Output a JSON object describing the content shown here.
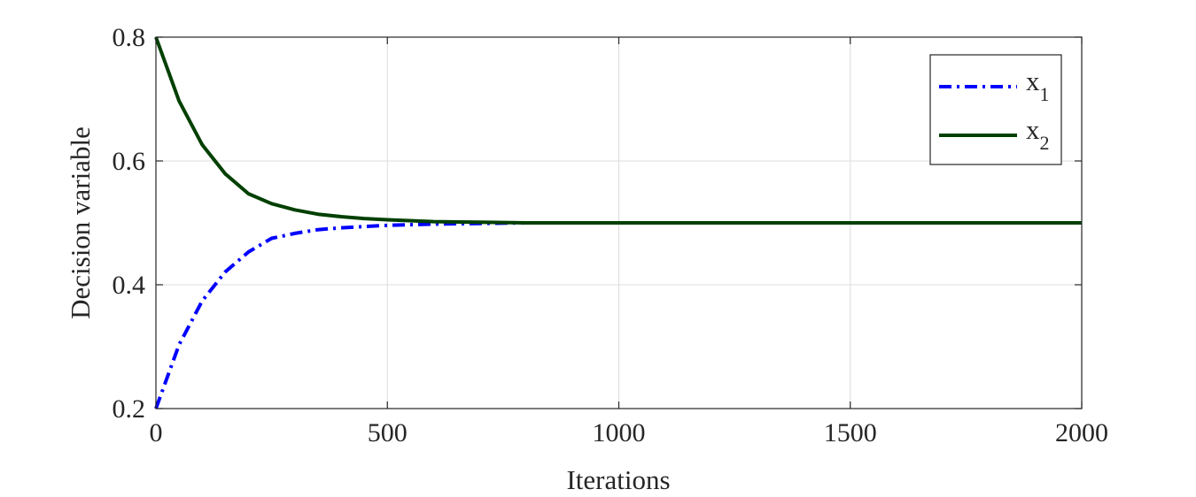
{
  "chart_data": {
    "type": "line",
    "xlabel": "Iterations",
    "ylabel": "Decision variable",
    "xlim": [
      0,
      2000
    ],
    "ylim": [
      0.2,
      0.8
    ],
    "xticks": [
      0,
      500,
      1000,
      1500,
      2000
    ],
    "xtick_labels": [
      "0",
      "500",
      "1000",
      "1500",
      "2000"
    ],
    "yticks": [
      0.2,
      0.4,
      0.6,
      0.8
    ],
    "ytick_labels": [
      "0.2",
      "0.4",
      "0.6",
      "0.8"
    ],
    "grid": true,
    "legend_position": "top-right",
    "series": [
      {
        "name": "x_1",
        "legend_base": "x",
        "legend_sub": "1",
        "color": "#0000ff",
        "style": "dash-dot",
        "x": [
          0,
          50,
          100,
          150,
          200,
          250,
          300,
          350,
          400,
          450,
          500,
          600,
          700,
          800,
          1000,
          1500,
          2000
        ],
        "y": [
          0.2,
          0.303,
          0.374,
          0.421,
          0.453,
          0.475,
          0.483,
          0.489,
          0.492,
          0.494,
          0.496,
          0.498,
          0.499,
          0.5,
          0.5,
          0.5,
          0.5
        ]
      },
      {
        "name": "x_2",
        "legend_base": "x",
        "legend_sub": "2",
        "color": "#004000",
        "style": "solid",
        "x": [
          0,
          50,
          100,
          150,
          200,
          250,
          300,
          350,
          400,
          450,
          500,
          600,
          700,
          800,
          1000,
          1500,
          2000
        ],
        "y": [
          0.8,
          0.697,
          0.626,
          0.579,
          0.547,
          0.531,
          0.521,
          0.514,
          0.51,
          0.507,
          0.505,
          0.502,
          0.501,
          0.5,
          0.5,
          0.5,
          0.5
        ]
      }
    ]
  }
}
